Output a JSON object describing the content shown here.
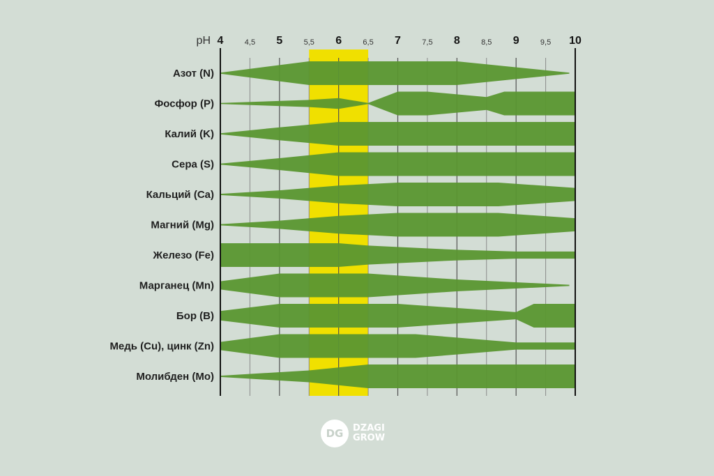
{
  "chart_data": {
    "type": "area",
    "axis_label": "pH",
    "ticks": [
      {
        "value": 4,
        "label": "4",
        "major": true
      },
      {
        "value": 4.5,
        "label": "4,5",
        "major": false
      },
      {
        "value": 5,
        "label": "5",
        "major": true
      },
      {
        "value": 5.5,
        "label": "5,5",
        "major": false
      },
      {
        "value": 6,
        "label": "6",
        "major": true
      },
      {
        "value": 6.5,
        "label": "6,5",
        "major": false
      },
      {
        "value": 7,
        "label": "7",
        "major": true
      },
      {
        "value": 7.5,
        "label": "7,5",
        "major": false
      },
      {
        "value": 8,
        "label": "8",
        "major": true
      },
      {
        "value": 8.5,
        "label": "8,5",
        "major": false
      },
      {
        "value": 9,
        "label": "9",
        "major": true
      },
      {
        "value": 9.5,
        "label": "9,5",
        "major": false
      },
      {
        "value": 10,
        "label": "10",
        "major": true
      }
    ],
    "xlim": [
      4,
      10
    ],
    "highlight_range": [
      5.5,
      6.5
    ],
    "band_color": "#5a9630",
    "highlight_color": "#f0e000",
    "series": [
      {
        "name": "Азот (N)",
        "points": [
          [
            4,
            0.05
          ],
          [
            5.5,
            1
          ],
          [
            6.5,
            1
          ],
          [
            8,
            1
          ],
          [
            9.9,
            0.05
          ]
        ]
      },
      {
        "name": "Фосфор (P)",
        "points": [
          [
            4,
            0.05
          ],
          [
            5.5,
            0.3
          ],
          [
            6,
            0.45
          ],
          [
            6.5,
            0.05
          ],
          [
            7,
            1
          ],
          [
            7.5,
            1
          ],
          [
            8.5,
            0.55
          ],
          [
            8.8,
            1
          ],
          [
            10,
            1
          ]
        ]
      },
      {
        "name": "Калий (K)",
        "points": [
          [
            4,
            0.05
          ],
          [
            5,
            0.55
          ],
          [
            6,
            1
          ],
          [
            10,
            1
          ]
        ]
      },
      {
        "name": "Сера (S)",
        "points": [
          [
            4,
            0.05
          ],
          [
            5,
            0.5
          ],
          [
            6,
            1
          ],
          [
            10,
            1
          ]
        ]
      },
      {
        "name": "Кальций (Ca)",
        "points": [
          [
            4,
            0.05
          ],
          [
            5,
            0.35
          ],
          [
            6,
            0.75
          ],
          [
            7,
            1
          ],
          [
            8.7,
            1
          ],
          [
            10,
            0.55
          ]
        ]
      },
      {
        "name": "Магний (Mg)",
        "points": [
          [
            4,
            0.05
          ],
          [
            5,
            0.35
          ],
          [
            6,
            0.75
          ],
          [
            7,
            1
          ],
          [
            8.7,
            1
          ],
          [
            10,
            0.55
          ]
        ]
      },
      {
        "name": "Железо (Fe)",
        "points": [
          [
            4,
            1
          ],
          [
            6,
            1
          ],
          [
            6.5,
            0.8
          ],
          [
            8,
            0.45
          ],
          [
            9,
            0.3
          ],
          [
            10,
            0.3
          ]
        ]
      },
      {
        "name": "Марганец (Mn)",
        "points": [
          [
            4,
            0.35
          ],
          [
            5,
            1
          ],
          [
            6.5,
            1
          ],
          [
            8,
            0.5
          ],
          [
            9.9,
            0.05
          ]
        ]
      },
      {
        "name": "Бор (B)",
        "points": [
          [
            4,
            0.4
          ],
          [
            5,
            1
          ],
          [
            7,
            1
          ],
          [
            9,
            0.3
          ],
          [
            9.3,
            1
          ],
          [
            10,
            1
          ]
        ]
      },
      {
        "name": "Медь (Cu), цинк (Zn)",
        "points": [
          [
            4,
            0.35
          ],
          [
            5,
            1
          ],
          [
            7.3,
            1
          ],
          [
            9,
            0.3
          ],
          [
            10,
            0.3
          ]
        ]
      },
      {
        "name": "Молибден (Mo)",
        "points": [
          [
            4,
            0.05
          ],
          [
            5.5,
            0.5
          ],
          [
            6.5,
            1
          ],
          [
            10,
            1
          ]
        ]
      }
    ]
  },
  "logo": {
    "mark": "DG",
    "line1": "DZAGI",
    "line2": "GROW"
  }
}
